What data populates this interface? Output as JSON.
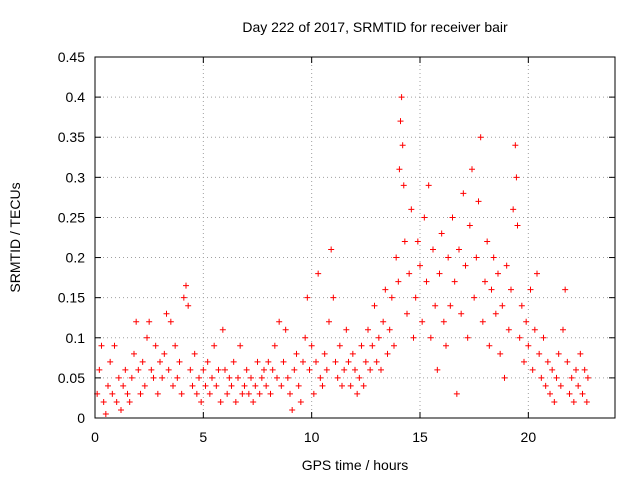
{
  "chart_data": {
    "type": "scatter",
    "title": "Day 222 of 2017, SRMTID for receiver bair",
    "xlabel": "GPS time / hours",
    "ylabel": "SRMTID / TECUs",
    "xlim": [
      0,
      24
    ],
    "ylim": [
      0,
      0.45
    ],
    "xticks": [
      0,
      5,
      10,
      15,
      20
    ],
    "xtick_labels": [
      "0",
      "5",
      "10",
      "15",
      "20"
    ],
    "yticks": [
      0,
      0.05,
      0.1,
      0.15,
      0.2,
      0.25,
      0.3,
      0.35,
      0.4,
      0.45
    ],
    "ytick_labels": [
      "0",
      "0.05",
      "0.1",
      "0.15",
      "0.2",
      "0.25",
      "0.3",
      "0.35",
      "0.4",
      "0.45"
    ],
    "grid": true,
    "marker": "+",
    "color": "#ff0000",
    "series": [
      {
        "name": "SRMTID",
        "points": [
          [
            0.1,
            0.03
          ],
          [
            0.2,
            0.06
          ],
          [
            0.3,
            0.09
          ],
          [
            0.4,
            0.02
          ],
          [
            0.5,
            0.005
          ],
          [
            0.6,
            0.04
          ],
          [
            0.7,
            0.07
          ],
          [
            0.8,
            0.03
          ],
          [
            0.9,
            0.09
          ],
          [
            1.0,
            0.02
          ],
          [
            1.1,
            0.05
          ],
          [
            1.2,
            0.01
          ],
          [
            1.3,
            0.04
          ],
          [
            1.4,
            0.06
          ],
          [
            1.5,
            0.03
          ],
          [
            1.6,
            0.02
          ],
          [
            1.7,
            0.05
          ],
          [
            1.8,
            0.08
          ],
          [
            1.9,
            0.12
          ],
          [
            2.0,
            0.06
          ],
          [
            2.1,
            0.03
          ],
          [
            2.2,
            0.07
          ],
          [
            2.3,
            0.04
          ],
          [
            2.4,
            0.1
          ],
          [
            2.5,
            0.12
          ],
          [
            2.6,
            0.06
          ],
          [
            2.7,
            0.05
          ],
          [
            2.8,
            0.09
          ],
          [
            2.9,
            0.03
          ],
          [
            3.0,
            0.07
          ],
          [
            3.1,
            0.05
          ],
          [
            3.2,
            0.08
          ],
          [
            3.3,
            0.13
          ],
          [
            3.4,
            0.06
          ],
          [
            3.5,
            0.12
          ],
          [
            3.6,
            0.04
          ],
          [
            3.7,
            0.09
          ],
          [
            3.8,
            0.05
          ],
          [
            3.9,
            0.07
          ],
          [
            4.0,
            0.03
          ],
          [
            4.1,
            0.15
          ],
          [
            4.2,
            0.165
          ],
          [
            4.3,
            0.14
          ],
          [
            4.4,
            0.06
          ],
          [
            4.5,
            0.04
          ],
          [
            4.6,
            0.08
          ],
          [
            4.7,
            0.03
          ],
          [
            4.8,
            0.05
          ],
          [
            4.9,
            0.02
          ],
          [
            5.0,
            0.06
          ],
          [
            5.1,
            0.04
          ],
          [
            5.2,
            0.07
          ],
          [
            5.3,
            0.03
          ],
          [
            5.4,
            0.05
          ],
          [
            5.5,
            0.09
          ],
          [
            5.6,
            0.04
          ],
          [
            5.7,
            0.06
          ],
          [
            5.8,
            0.02
          ],
          [
            5.9,
            0.11
          ],
          [
            6.0,
            0.06
          ],
          [
            6.1,
            0.03
          ],
          [
            6.2,
            0.05
          ],
          [
            6.3,
            0.04
          ],
          [
            6.4,
            0.07
          ],
          [
            6.5,
            0.02
          ],
          [
            6.6,
            0.05
          ],
          [
            6.7,
            0.09
          ],
          [
            6.8,
            0.03
          ],
          [
            6.9,
            0.04
          ],
          [
            7.0,
            0.06
          ],
          [
            7.1,
            0.03
          ],
          [
            7.2,
            0.05
          ],
          [
            7.3,
            0.02
          ],
          [
            7.4,
            0.04
          ],
          [
            7.5,
            0.07
          ],
          [
            7.6,
            0.03
          ],
          [
            7.7,
            0.05
          ],
          [
            7.8,
            0.06
          ],
          [
            7.9,
            0.04
          ],
          [
            8.0,
            0.07
          ],
          [
            8.1,
            0.03
          ],
          [
            8.2,
            0.06
          ],
          [
            8.3,
            0.09
          ],
          [
            8.4,
            0.05
          ],
          [
            8.5,
            0.12
          ],
          [
            8.6,
            0.04
          ],
          [
            8.7,
            0.07
          ],
          [
            8.8,
            0.11
          ],
          [
            8.9,
            0.05
          ],
          [
            9.0,
            0.03
          ],
          [
            9.1,
            0.01
          ],
          [
            9.2,
            0.06
          ],
          [
            9.3,
            0.08
          ],
          [
            9.4,
            0.04
          ],
          [
            9.5,
            0.02
          ],
          [
            9.6,
            0.07
          ],
          [
            9.7,
            0.1
          ],
          [
            9.8,
            0.15
          ],
          [
            9.9,
            0.06
          ],
          [
            10.0,
            0.09
          ],
          [
            10.1,
            0.03
          ],
          [
            10.2,
            0.07
          ],
          [
            10.3,
            0.18
          ],
          [
            10.4,
            0.05
          ],
          [
            10.5,
            0.04
          ],
          [
            10.6,
            0.08
          ],
          [
            10.7,
            0.06
          ],
          [
            10.8,
            0.12
          ],
          [
            10.9,
            0.21
          ],
          [
            11.0,
            0.15
          ],
          [
            11.1,
            0.07
          ],
          [
            11.2,
            0.05
          ],
          [
            11.3,
            0.09
          ],
          [
            11.4,
            0.04
          ],
          [
            11.5,
            0.06
          ],
          [
            11.6,
            0.11
          ],
          [
            11.7,
            0.07
          ],
          [
            11.8,
            0.04
          ],
          [
            11.9,
            0.08
          ],
          [
            12.0,
            0.06
          ],
          [
            12.1,
            0.03
          ],
          [
            12.2,
            0.05
          ],
          [
            12.3,
            0.09
          ],
          [
            12.4,
            0.04
          ],
          [
            12.5,
            0.07
          ],
          [
            12.6,
            0.11
          ],
          [
            12.7,
            0.06
          ],
          [
            12.8,
            0.09
          ],
          [
            12.9,
            0.14
          ],
          [
            13.0,
            0.07
          ],
          [
            13.1,
            0.1
          ],
          [
            13.2,
            0.06
          ],
          [
            13.3,
            0.12
          ],
          [
            13.4,
            0.16
          ],
          [
            13.5,
            0.08
          ],
          [
            13.6,
            0.11
          ],
          [
            13.7,
            0.15
          ],
          [
            13.8,
            0.09
          ],
          [
            13.9,
            0.2
          ],
          [
            14.0,
            0.17
          ],
          [
            14.05,
            0.31
          ],
          [
            14.1,
            0.37
          ],
          [
            14.15,
            0.4
          ],
          [
            14.2,
            0.34
          ],
          [
            14.25,
            0.29
          ],
          [
            14.3,
            0.22
          ],
          [
            14.4,
            0.13
          ],
          [
            14.5,
            0.18
          ],
          [
            14.6,
            0.26
          ],
          [
            14.7,
            0.1
          ],
          [
            14.8,
            0.15
          ],
          [
            14.9,
            0.22
          ],
          [
            15.0,
            0.19
          ],
          [
            15.1,
            0.12
          ],
          [
            15.2,
            0.25
          ],
          [
            15.3,
            0.17
          ],
          [
            15.4,
            0.29
          ],
          [
            15.5,
            0.1
          ],
          [
            15.6,
            0.21
          ],
          [
            15.7,
            0.14
          ],
          [
            15.8,
            0.06
          ],
          [
            15.9,
            0.18
          ],
          [
            16.0,
            0.23
          ],
          [
            16.1,
            0.12
          ],
          [
            16.2,
            0.09
          ],
          [
            16.3,
            0.2
          ],
          [
            16.4,
            0.14
          ],
          [
            16.5,
            0.25
          ],
          [
            16.6,
            0.17
          ],
          [
            16.7,
            0.03
          ],
          [
            16.8,
            0.21
          ],
          [
            16.9,
            0.13
          ],
          [
            17.0,
            0.28
          ],
          [
            17.1,
            0.19
          ],
          [
            17.2,
            0.1
          ],
          [
            17.3,
            0.24
          ],
          [
            17.4,
            0.31
          ],
          [
            17.5,
            0.15
          ],
          [
            17.6,
            0.2
          ],
          [
            17.7,
            0.27
          ],
          [
            17.8,
            0.35
          ],
          [
            17.9,
            0.12
          ],
          [
            18.0,
            0.17
          ],
          [
            18.1,
            0.22
          ],
          [
            18.2,
            0.09
          ],
          [
            18.3,
            0.16
          ],
          [
            18.4,
            0.2
          ],
          [
            18.5,
            0.13
          ],
          [
            18.6,
            0.18
          ],
          [
            18.7,
            0.08
          ],
          [
            18.8,
            0.14
          ],
          [
            18.9,
            0.05
          ],
          [
            19.0,
            0.19
          ],
          [
            19.1,
            0.11
          ],
          [
            19.2,
            0.16
          ],
          [
            19.3,
            0.26
          ],
          [
            19.4,
            0.34
          ],
          [
            19.45,
            0.3
          ],
          [
            19.5,
            0.24
          ],
          [
            19.6,
            0.1
          ],
          [
            19.7,
            0.14
          ],
          [
            19.8,
            0.07
          ],
          [
            19.9,
            0.12
          ],
          [
            20.0,
            0.09
          ],
          [
            20.1,
            0.16
          ],
          [
            20.2,
            0.06
          ],
          [
            20.3,
            0.11
          ],
          [
            20.4,
            0.18
          ],
          [
            20.5,
            0.08
          ],
          [
            20.6,
            0.05
          ],
          [
            20.7,
            0.1
          ],
          [
            20.8,
            0.04
          ],
          [
            20.9,
            0.07
          ],
          [
            21.0,
            0.03
          ],
          [
            21.1,
            0.06
          ],
          [
            21.2,
            0.02
          ],
          [
            21.3,
            0.05
          ],
          [
            21.4,
            0.08
          ],
          [
            21.5,
            0.04
          ],
          [
            21.6,
            0.11
          ],
          [
            21.7,
            0.16
          ],
          [
            21.8,
            0.07
          ],
          [
            21.9,
            0.03
          ],
          [
            22.0,
            0.05
          ],
          [
            22.1,
            0.02
          ],
          [
            22.2,
            0.06
          ],
          [
            22.3,
            0.04
          ],
          [
            22.4,
            0.08
          ],
          [
            22.5,
            0.03
          ],
          [
            22.6,
            0.06
          ],
          [
            22.7,
            0.02
          ],
          [
            22.75,
            0.05
          ]
        ]
      }
    ]
  }
}
